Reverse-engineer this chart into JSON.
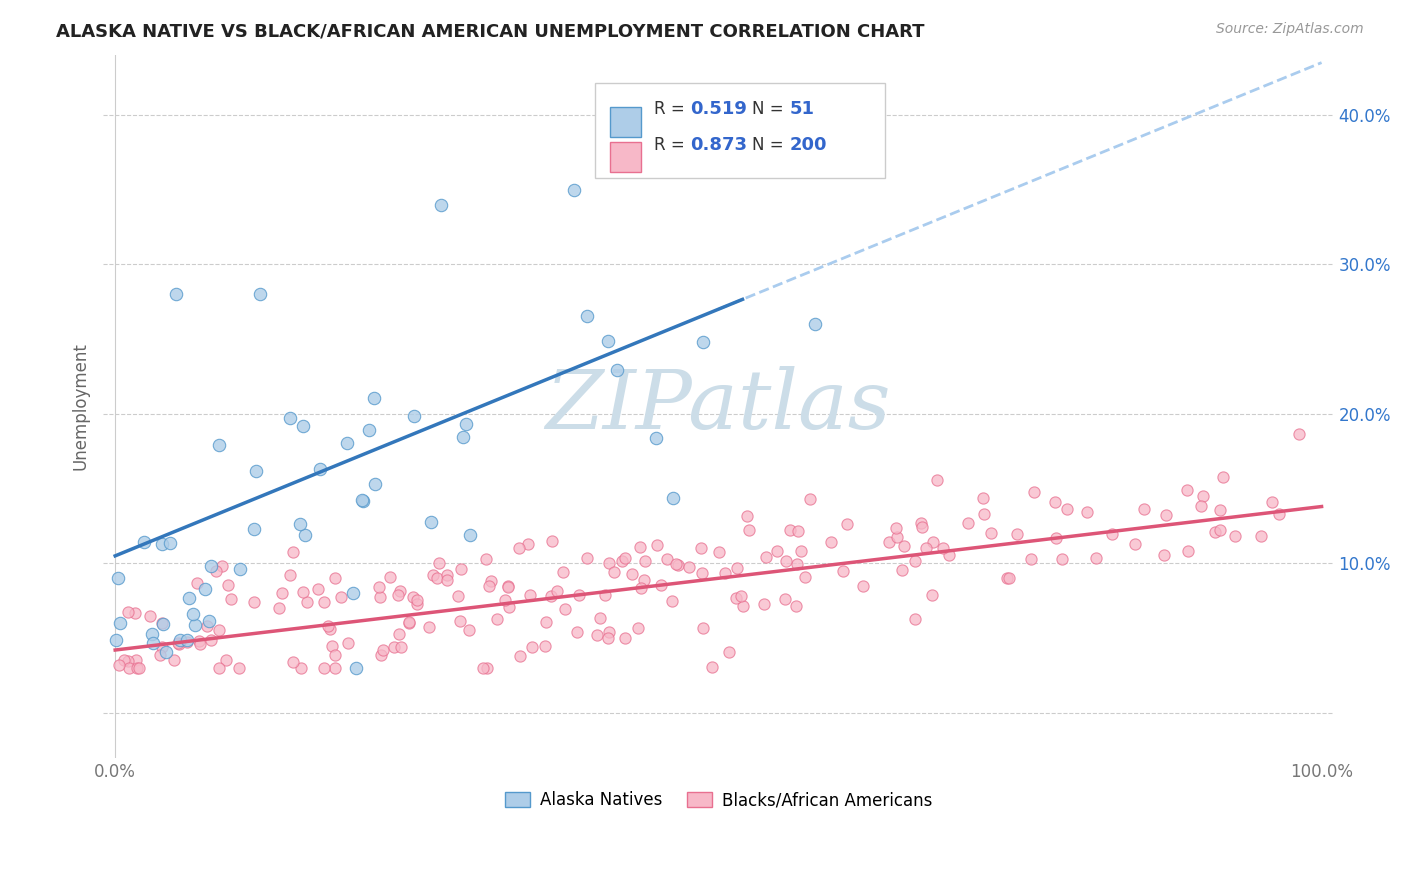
{
  "title": "ALASKA NATIVE VS BLACK/AFRICAN AMERICAN UNEMPLOYMENT CORRELATION CHART",
  "source": "Source: ZipAtlas.com",
  "ylabel": "Unemployment",
  "xlim": [
    -0.01,
    1.01
  ],
  "ylim": [
    -0.03,
    0.44
  ],
  "xticks": [
    0.0,
    0.1,
    0.2,
    0.3,
    0.4,
    0.5,
    0.6,
    0.7,
    0.8,
    0.9,
    1.0
  ],
  "xticklabels": [
    "0.0%",
    "",
    "",
    "",
    "",
    "",
    "",
    "",
    "",
    "",
    "100.0%"
  ],
  "yticks": [
    0.0,
    0.1,
    0.2,
    0.3,
    0.4
  ],
  "yticklabels": [
    "",
    "10.0%",
    "20.0%",
    "30.0%",
    "40.0%"
  ],
  "color_blue_fill": "#aecde8",
  "color_blue_edge": "#5599cc",
  "color_blue_line": "#3377bb",
  "color_blue_dash": "#aaccee",
  "color_pink_fill": "#f7b8c8",
  "color_pink_edge": "#e87090",
  "color_pink_line": "#dd5577",
  "watermark_color": "#ccdde8",
  "background_color": "#ffffff",
  "grid_color": "#cccccc",
  "title_color": "#222222",
  "source_color": "#999999",
  "ylabel_color": "#666666",
  "tick_color": "#777777",
  "legend_r1": "0.519",
  "legend_n1": "51",
  "legend_r2": "0.873",
  "legend_n2": "200",
  "blue_line_x0": 0.0,
  "blue_line_y0": 0.105,
  "blue_line_x1": 0.5,
  "blue_line_y1": 0.27,
  "blue_line_slope": 0.33,
  "pink_line_x0": 0.0,
  "pink_line_y0": 0.042,
  "pink_line_x1": 1.0,
  "pink_line_y1": 0.138,
  "pink_line_slope": 0.096
}
